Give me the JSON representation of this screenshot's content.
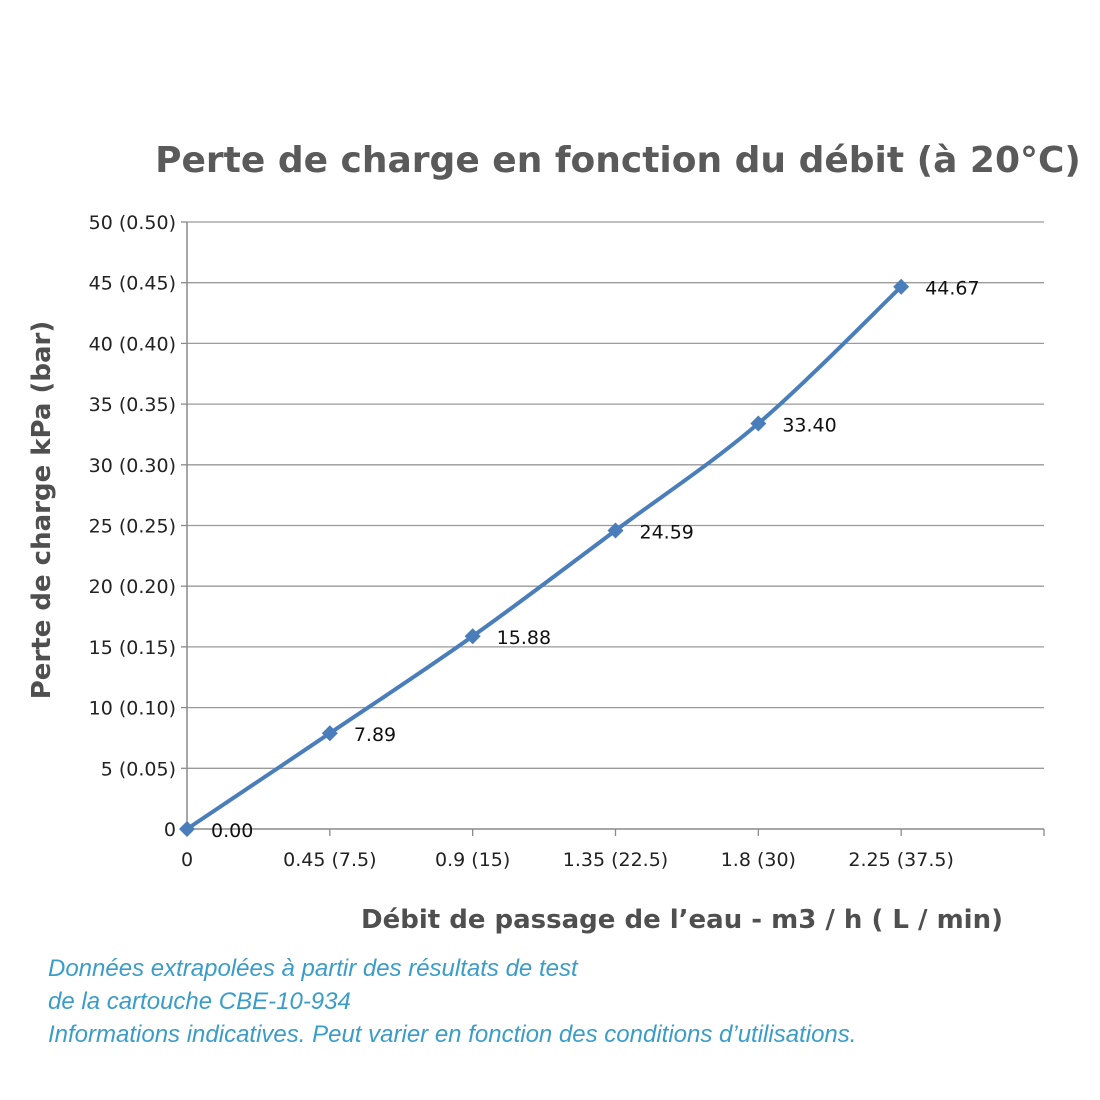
{
  "chart_data": {
    "type": "line",
    "title": "Perte de charge en fonction du débit (à 20°C)",
    "xlabel": "Débit de passage de l’eau - m3 / h ( L / min)",
    "ylabel": "Perte de charge kPa (bar)",
    "categories": [
      "0",
      "0.45 (7.5)",
      "0.9 (15)",
      "1.35 (22.5)",
      "1.8 (30)",
      "2.25 (37.5)"
    ],
    "x": [
      0,
      0.45,
      0.9,
      1.35,
      1.8,
      2.25
    ],
    "xlim": [
      0,
      2.7
    ],
    "y_ticks": [
      {
        "value": 0,
        "label": "0"
      },
      {
        "value": 5,
        "label": "5 (0.05)"
      },
      {
        "value": 10,
        "label": "10 (0.10)"
      },
      {
        "value": 15,
        "label": "15 (0.15)"
      },
      {
        "value": 20,
        "label": "20 (0.20)"
      },
      {
        "value": 25,
        "label": "25 (0.25)"
      },
      {
        "value": 30,
        "label": "30 (0.30)"
      },
      {
        "value": 35,
        "label": "35 (0.35)"
      },
      {
        "value": 40,
        "label": "40 (0.40)"
      },
      {
        "value": 45,
        "label": "45 (0.45)"
      },
      {
        "value": 50,
        "label": "50 (0.50)"
      }
    ],
    "ylim": [
      0,
      50
    ],
    "grid": true,
    "legend": "none",
    "series": [
      {
        "values": [
          0.0,
          7.89,
          15.88,
          24.59,
          33.4,
          44.67
        ],
        "data_labels": [
          "0.00",
          "7.89",
          "15.88",
          "24.59",
          "33.40",
          "44.67"
        ],
        "color": "#4a7ebb",
        "marker": "diamond",
        "smooth": true
      }
    ]
  },
  "notes": {
    "line1": "Données extrapolées à partir des résultats de test",
    "line2": "de la cartouche CBE-10-934",
    "line3": "Informations indicatives. Peut varier en fonction des conditions d’utilisations.",
    "color": "#3a9cc9"
  },
  "colors": {
    "gridline": "#9a9a9a",
    "axis": "#8a8a8a"
  }
}
